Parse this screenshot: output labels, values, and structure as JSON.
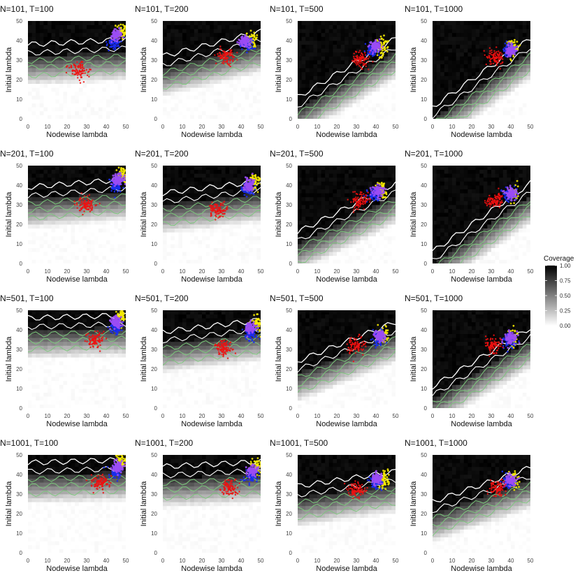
{
  "chart_data": {
    "type": "heatmap",
    "legend": {
      "title": "Coverage",
      "placement": "right",
      "ticks": [
        "1.00",
        "0.75",
        "0.50",
        "0.25",
        "0.00"
      ],
      "tick_values": [
        1.0,
        0.75,
        0.5,
        0.25,
        0.0
      ]
    },
    "colors": {
      "low": "#ffffff",
      "high": "#000000",
      "contour_white": "#ffffff",
      "contour_green": "#7bc87b",
      "red": "#ee1111",
      "blue": "#1a2cf0",
      "purple": "#9b4cf5",
      "yellow": "#f5ea00"
    },
    "x_range": [
      0,
      50
    ],
    "y_range": [
      0,
      50
    ],
    "x_ticks": [
      "0",
      "10",
      "20",
      "30",
      "40",
      "50"
    ],
    "y_ticks": [
      "0",
      "10",
      "20",
      "30",
      "40",
      "50"
    ],
    "xlabel": "Nodewise lambda",
    "ylabel": "Initial lambda",
    "panels": [
      {
        "title": "N=101, T=100",
        "threshold": 32,
        "slope": 0.05,
        "red": [
          26,
          25
        ],
        "purple": [
          45,
          43
        ],
        "blue": [
          44,
          39
        ],
        "yellow": [
          48,
          45
        ]
      },
      {
        "title": "N=101, T=200",
        "threshold": 26,
        "slope": 0.25,
        "red": [
          32,
          32
        ],
        "purple": [
          42,
          40
        ],
        "blue": [
          43,
          38
        ],
        "yellow": [
          46,
          40
        ]
      },
      {
        "title": "N=101, T=500",
        "threshold": 5,
        "slope": 0.6,
        "red": [
          32,
          30
        ],
        "purple": [
          40,
          37
        ],
        "blue": [
          38,
          35
        ],
        "yellow": [
          43,
          37
        ]
      },
      {
        "title": "N=101, T=1000",
        "threshold": 0,
        "slope": 0.7,
        "red": [
          32,
          31
        ],
        "purple": [
          40,
          35
        ],
        "blue": [
          39,
          35
        ],
        "yellow": [
          41,
          36
        ]
      },
      {
        "title": "N=201, T=100",
        "threshold": 33,
        "slope": 0.08,
        "red": [
          30,
          30
        ],
        "purple": [
          46,
          43
        ],
        "blue": [
          45,
          40
        ],
        "yellow": [
          48,
          45
        ]
      },
      {
        "title": "N=201, T=200",
        "threshold": 30,
        "slope": 0.12,
        "red": [
          28,
          27
        ],
        "purple": [
          44,
          40
        ],
        "blue": [
          43,
          38
        ],
        "yellow": [
          47,
          42
        ]
      },
      {
        "title": "N=201, T=500",
        "threshold": 10,
        "slope": 0.5,
        "red": [
          32,
          32
        ],
        "purple": [
          41,
          37
        ],
        "blue": [
          39,
          35
        ],
        "yellow": [
          43,
          37
        ]
      },
      {
        "title": "N=201, T=1000",
        "threshold": 0,
        "slope": 0.7,
        "red": [
          32,
          32
        ],
        "purple": [
          40,
          36
        ],
        "blue": [
          39,
          35
        ],
        "yellow": [
          41,
          36
        ]
      },
      {
        "title": "N=501, T=100",
        "threshold": 40,
        "slope": 0.03,
        "red": [
          35,
          35
        ],
        "purple": [
          45,
          44
        ],
        "blue": [
          45,
          41
        ],
        "yellow": [
          48,
          47
        ]
      },
      {
        "title": "N=501, T=200",
        "threshold": 33,
        "slope": 0.12,
        "red": [
          31,
          31
        ],
        "purple": [
          45,
          41
        ],
        "blue": [
          45,
          38
        ],
        "yellow": [
          48,
          43
        ]
      },
      {
        "title": "N=501, T=500",
        "threshold": 18,
        "slope": 0.4,
        "red": [
          30,
          32
        ],
        "purple": [
          42,
          37
        ],
        "blue": [
          41,
          36
        ],
        "yellow": [
          44,
          37
        ]
      },
      {
        "title": "N=501, T=1000",
        "threshold": 5,
        "slope": 0.6,
        "red": [
          31,
          32
        ],
        "purple": [
          40,
          36
        ],
        "blue": [
          39,
          35
        ],
        "yellow": [
          41,
          36
        ]
      },
      {
        "title": "N=1001, T=100",
        "threshold": 40,
        "slope": 0.03,
        "red": [
          37,
          36
        ],
        "purple": [
          46,
          44
        ],
        "blue": [
          45,
          41
        ],
        "yellow": [
          48,
          47
        ]
      },
      {
        "title": "N=1001, T=200",
        "threshold": 38,
        "slope": 0.05,
        "red": [
          34,
          33
        ],
        "purple": [
          46,
          42
        ],
        "blue": [
          45,
          39
        ],
        "yellow": [
          48,
          45
        ]
      },
      {
        "title": "N=1001, T=500",
        "threshold": 28,
        "slope": 0.15,
        "red": [
          30,
          32
        ],
        "purple": [
          41,
          38
        ],
        "blue": [
          40,
          36
        ],
        "yellow": [
          44,
          38
        ]
      },
      {
        "title": "N=1001, T=1000",
        "threshold": 20,
        "slope": 0.35,
        "red": [
          33,
          33
        ],
        "purple": [
          40,
          37
        ],
        "blue": [
          39,
          36
        ],
        "yellow": [
          41,
          37
        ]
      }
    ]
  }
}
